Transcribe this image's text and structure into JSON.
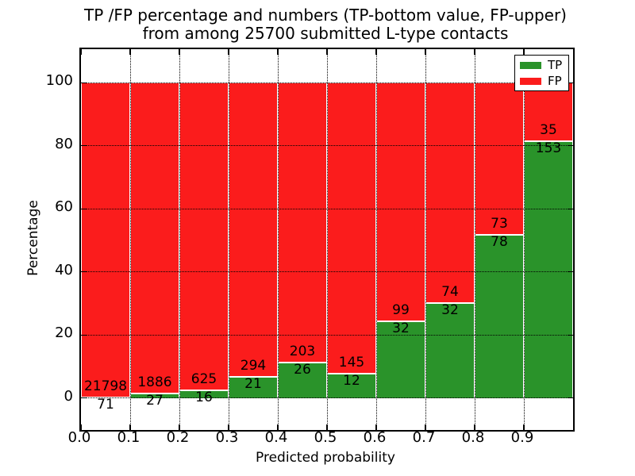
{
  "chart_data": {
    "type": "bar",
    "stacked": true,
    "normalized": "percent-of-bin-total",
    "title_line1": "TP /FP percentage and numbers (TP-bottom value, FP-upper)",
    "title_line2": "from among 25700 submitted L-type contacts",
    "xlabel": "Predicted probability",
    "ylabel": "Percentage",
    "total_contacts": 25700,
    "x_bin_edges": [
      0.0,
      0.1,
      0.2,
      0.3,
      0.4,
      0.5,
      0.6,
      0.7,
      0.8,
      0.9,
      1.0
    ],
    "x_tick_labels": [
      "0.0",
      "0.1",
      "0.2",
      "0.3",
      "0.4",
      "0.5",
      "0.6",
      "0.7",
      "0.8",
      "0.9"
    ],
    "y_ticks": [
      0,
      20,
      40,
      60,
      80,
      100
    ],
    "xlim": [
      0.0,
      1.0
    ],
    "ylim": [
      -10.1,
      110.6
    ],
    "grid": {
      "visible": true,
      "linestyle": "dotted",
      "color": "#000000"
    },
    "colors": {
      "tp": "#2a932a",
      "fp": "#fb1c1c",
      "bar_edge": "#ffffff",
      "text": "#000000",
      "background": "#ffffff"
    },
    "legend": {
      "position": "upper-right",
      "entries": [
        {
          "label": "TP",
          "color": "#2a932a"
        },
        {
          "label": "FP",
          "color": "#fb1c1c"
        }
      ]
    },
    "series": [
      {
        "name": "TP",
        "color": "#2a932a",
        "values": [
          71,
          27,
          16,
          21,
          26,
          12,
          32,
          32,
          78,
          153
        ]
      },
      {
        "name": "FP",
        "color": "#fb1c1c",
        "values": [
          21798,
          1886,
          625,
          294,
          203,
          145,
          99,
          74,
          73,
          35
        ]
      }
    ],
    "tp_percent_per_bin": [
      0.32,
      1.41,
      2.5,
      6.67,
      11.35,
      7.64,
      24.43,
      30.19,
      51.66,
      81.38
    ]
  }
}
